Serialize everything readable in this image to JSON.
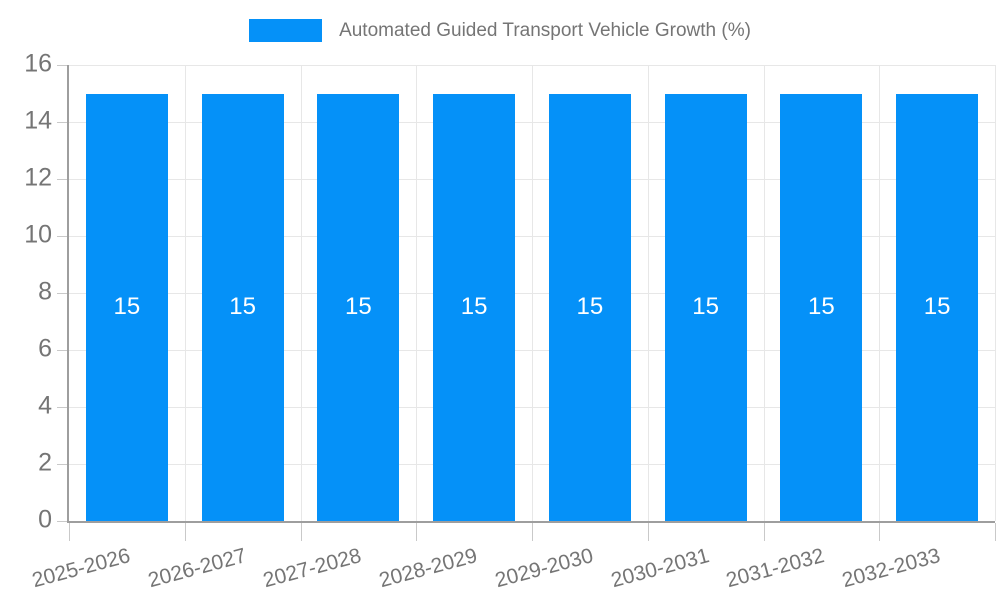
{
  "chart_data": {
    "type": "bar",
    "title": "Automated Guided Transport Vehicle Growth (%)",
    "categories": [
      "2025-2026",
      "2026-2027",
      "2027-2028",
      "2028-2029",
      "2029-2030",
      "2030-2031",
      "2031-2032",
      "2032-2033"
    ],
    "series": [
      {
        "name": "Automated Guided Transport Vehicle Growth (%)",
        "values": [
          15,
          15,
          15,
          15,
          15,
          15,
          15,
          15
        ]
      }
    ],
    "bar_value_labels": [
      "15",
      "15",
      "15",
      "15",
      "15",
      "15",
      "15",
      "15"
    ],
    "xlabel": "",
    "ylabel": "",
    "ylim": [
      0,
      16
    ],
    "yticks": [
      0,
      2,
      4,
      6,
      8,
      10,
      12,
      14,
      16
    ],
    "grid": true,
    "legend_position": "top-center",
    "x_tick_label_rotation_deg": -15,
    "colors": {
      "bar": "#0591F8",
      "bar_label_text": "#FFFFFF",
      "axis_text": "#757575",
      "grid_line": "#E7E7E7",
      "axis_line": "#9E9E9E",
      "tick": "#C9C9C9",
      "background": "#FFFFFF"
    }
  }
}
